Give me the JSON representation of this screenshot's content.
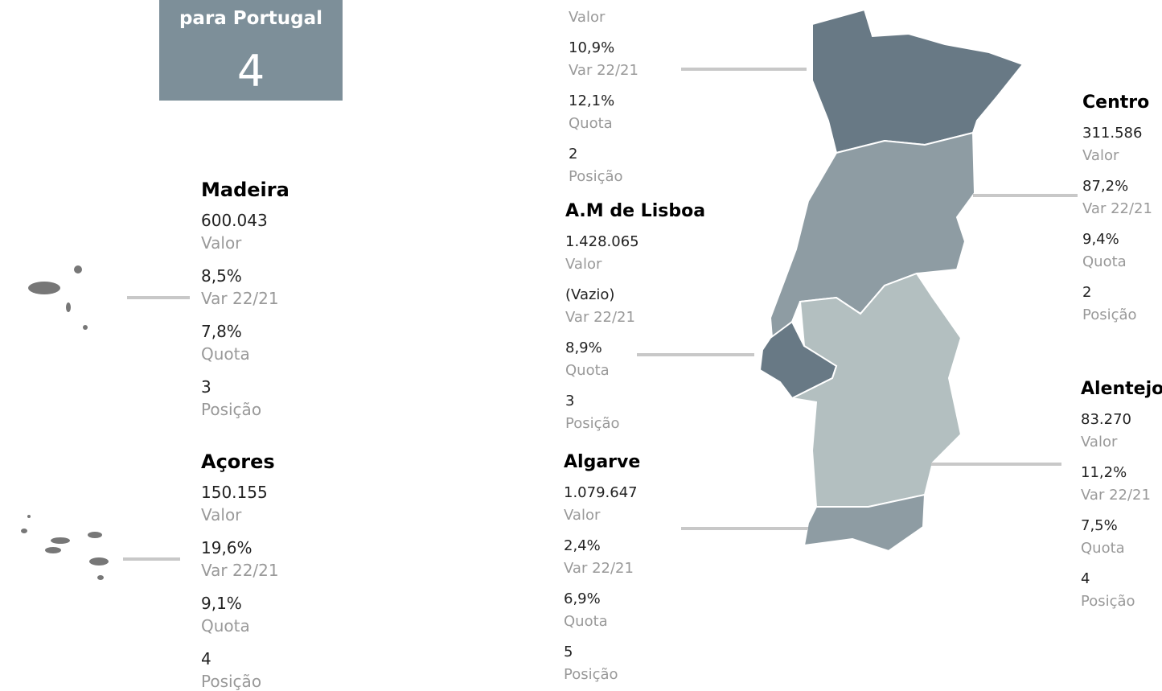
{
  "header": {
    "title": "para Portugal",
    "value": "4"
  },
  "regions": [
    {
      "fields": [
        {
          "label": "Valor"
        },
        {
          "value": "10,9%",
          "label": "Var 22/21"
        },
        {
          "value": "12,1%",
          "label": "Quota"
        },
        {
          "value": "2",
          "label": "Posição"
        }
      ]
    },
    {
      "title": "Madeira",
      "fields": [
        {
          "value": "600.043",
          "label": "Valor"
        },
        {
          "value": "8,5%",
          "label": "Var 22/21"
        },
        {
          "value": "7,8%",
          "label": "Quota"
        },
        {
          "value": "3",
          "label": "Posição"
        }
      ]
    },
    {
      "title": "Açores",
      "fields": [
        {
          "value": "150.155",
          "label": "Valor"
        },
        {
          "value": "19,6%",
          "label": "Var 22/21"
        },
        {
          "value": "9,1%",
          "label": "Quota"
        },
        {
          "value": "4",
          "label": "Posição"
        }
      ]
    },
    {
      "title": "A.M de Lisboa",
      "fields": [
        {
          "value": "1.428.065",
          "label": "Valor"
        },
        {
          "value": "(Vazio)",
          "label": "Var 22/21"
        },
        {
          "value": "8,9%",
          "label": "Quota"
        },
        {
          "value": "3",
          "label": "Posição"
        }
      ]
    },
    {
      "title": "Algarve",
      "fields": [
        {
          "value": "1.079.647",
          "label": "Valor"
        },
        {
          "value": "2,4%",
          "label": "Var 22/21"
        },
        {
          "value": "6,9%",
          "label": "Quota"
        },
        {
          "value": "5",
          "label": "Posição"
        }
      ]
    },
    {
      "title": "Centro",
      "fields": [
        {
          "value": "311.586",
          "label": "Valor"
        },
        {
          "value": "87,2%",
          "label": "Var 22/21"
        },
        {
          "value": "9,4%",
          "label": "Quota"
        },
        {
          "value": "2",
          "label": "Posição"
        }
      ]
    },
    {
      "title": "Alentejo",
      "fields": [
        {
          "value": "83.270",
          "label": "Valor"
        },
        {
          "value": "11,2%",
          "label": "Var 22/21"
        },
        {
          "value": "7,5%",
          "label": "Quota"
        },
        {
          "value": "4",
          "label": "Posição"
        }
      ]
    }
  ]
}
